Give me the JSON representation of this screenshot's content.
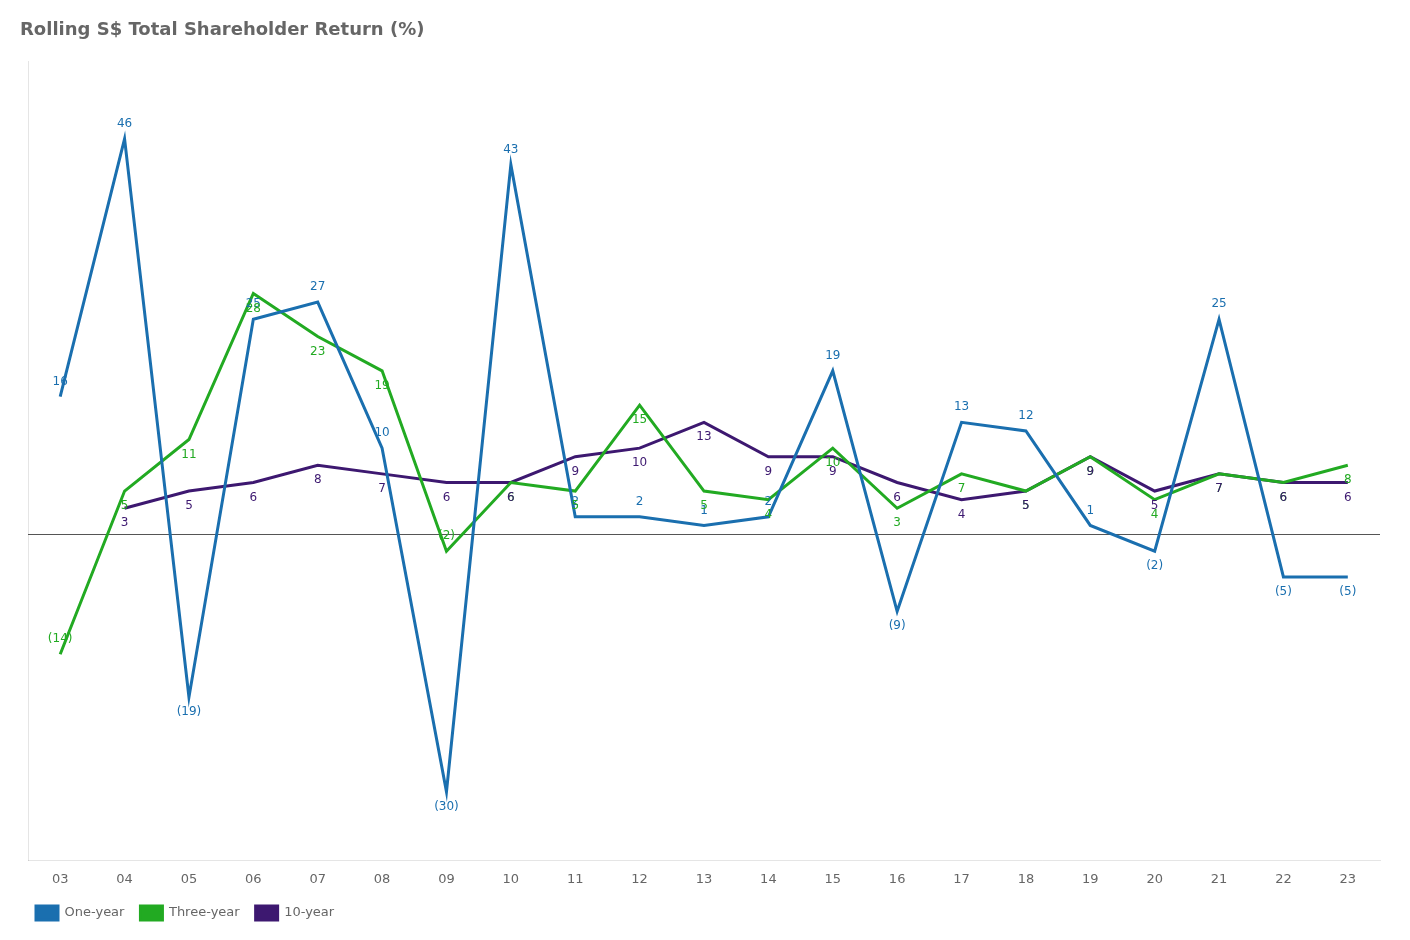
{
  "chart_data": {
    "type": "line",
    "title": "Rolling S$ Total Shareholder Return (%)",
    "categories": [
      "03",
      "04",
      "05",
      "06",
      "07",
      "08",
      "09",
      "10",
      "11",
      "12",
      "13",
      "14",
      "15",
      "16",
      "17",
      "18",
      "19",
      "20",
      "21",
      "22",
      "23"
    ],
    "series": [
      {
        "name": "One-year",
        "color": "#1a6faf",
        "values": [
          16,
          46,
          -19,
          25,
          27,
          10,
          -30,
          43,
          2,
          2,
          1,
          2,
          19,
          -9,
          13,
          12,
          1,
          -2,
          25,
          -5,
          -5
        ],
        "value_labels": [
          "16",
          "46",
          "(19)",
          "25",
          "27",
          "10",
          "(30)",
          "43",
          "2",
          "2",
          "1",
          "2",
          "19",
          "(9)",
          "13",
          "12",
          "1",
          "(2)",
          "25",
          "(5)",
          "(5)"
        ]
      },
      {
        "name": "Three-year",
        "color": "#22aa22",
        "values": [
          -14,
          5,
          11,
          28,
          23,
          19,
          -2,
          6,
          5,
          15,
          5,
          4,
          10,
          3,
          7,
          5,
          9,
          4,
          7,
          6,
          8
        ],
        "value_labels": [
          "(14)",
          "5",
          "11",
          "28",
          "23",
          "19",
          "(2)",
          "6",
          "5",
          "15",
          "5",
          "4",
          "10",
          "3",
          "7",
          "5",
          "9",
          "4",
          "7",
          "6",
          "8"
        ]
      },
      {
        "name": "10-year",
        "color": "#3d1870",
        "values": [
          null,
          3,
          5,
          6,
          8,
          7,
          6,
          6,
          9,
          10,
          13,
          9,
          9,
          6,
          4,
          5,
          9,
          5,
          7,
          6,
          6
        ],
        "value_labels": [
          null,
          "3",
          "5",
          "6",
          "8",
          "7",
          "6",
          "6",
          "9",
          "10",
          "13",
          "9",
          "9",
          "6",
          "4",
          "5",
          "9",
          "5",
          "7",
          "6",
          "6"
        ]
      }
    ],
    "ylim": [
      -38,
      55
    ],
    "yticks": [
      0
    ],
    "grid": false,
    "tick_labels": "x",
    "data_labels": true,
    "legend": "lower left"
  }
}
